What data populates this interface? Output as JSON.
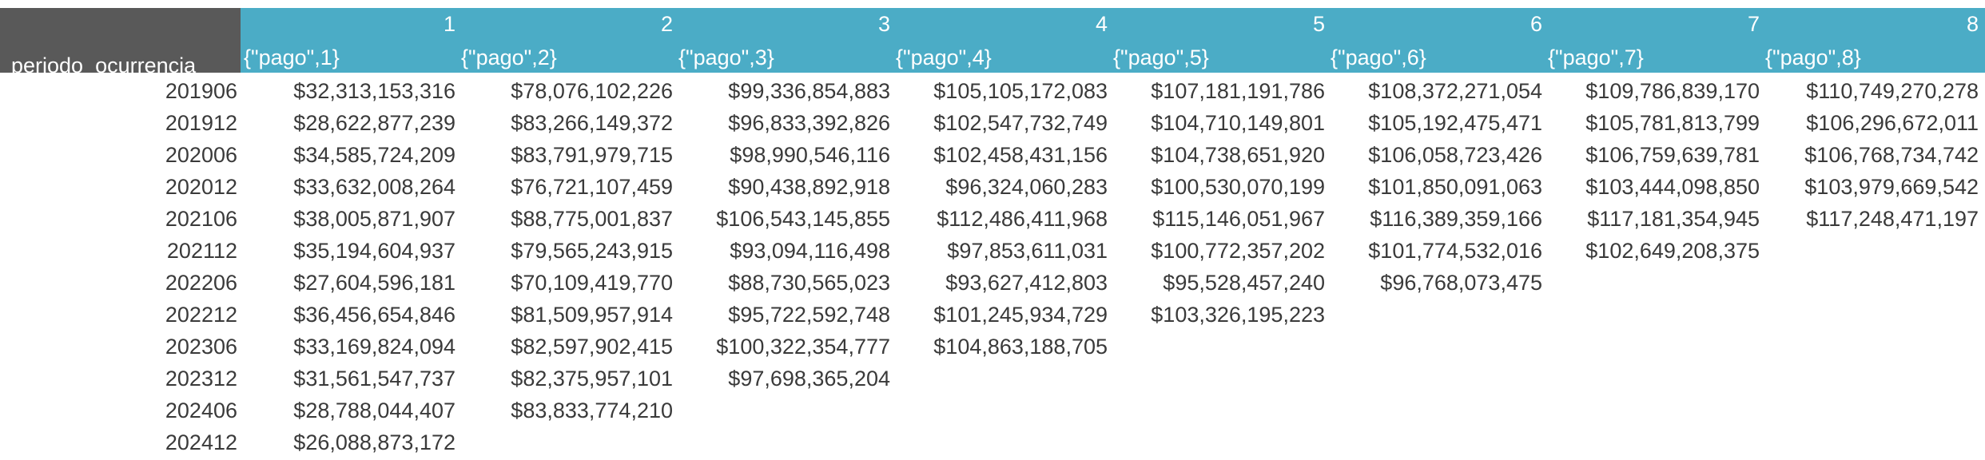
{
  "header": {
    "corner_label": "periodo_ocurrencia",
    "columns": [
      {
        "num": "1",
        "label": "{\"pago\",1}"
      },
      {
        "num": "2",
        "label": "{\"pago\",2}"
      },
      {
        "num": "3",
        "label": "{\"pago\",3}"
      },
      {
        "num": "4",
        "label": "{\"pago\",4}"
      },
      {
        "num": "5",
        "label": "{\"pago\",5}"
      },
      {
        "num": "6",
        "label": "{\"pago\",6}"
      },
      {
        "num": "7",
        "label": "{\"pago\",7}"
      },
      {
        "num": "8",
        "label": "{\"pago\",8}"
      }
    ]
  },
  "rows": [
    {
      "period": "201906",
      "values": [
        "$32,313,153,316",
        "$78,076,102,226",
        "$99,336,854,883",
        "$105,105,172,083",
        "$107,181,191,786",
        "$108,372,271,054",
        "$109,786,839,170",
        "$110,749,270,278"
      ]
    },
    {
      "period": "201912",
      "values": [
        "$28,622,877,239",
        "$83,266,149,372",
        "$96,833,392,826",
        "$102,547,732,749",
        "$104,710,149,801",
        "$105,192,475,471",
        "$105,781,813,799",
        "$106,296,672,011"
      ]
    },
    {
      "period": "202006",
      "values": [
        "$34,585,724,209",
        "$83,791,979,715",
        "$98,990,546,116",
        "$102,458,431,156",
        "$104,738,651,920",
        "$106,058,723,426",
        "$106,759,639,781",
        "$106,768,734,742"
      ]
    },
    {
      "period": "202012",
      "values": [
        "$33,632,008,264",
        "$76,721,107,459",
        "$90,438,892,918",
        "$96,324,060,283",
        "$100,530,070,199",
        "$101,850,091,063",
        "$103,444,098,850",
        "$103,979,669,542"
      ]
    },
    {
      "period": "202106",
      "values": [
        "$38,005,871,907",
        "$88,775,001,837",
        "$106,543,145,855",
        "$112,486,411,968",
        "$115,146,051,967",
        "$116,389,359,166",
        "$117,181,354,945",
        "$117,248,471,197"
      ]
    },
    {
      "period": "202112",
      "values": [
        "$35,194,604,937",
        "$79,565,243,915",
        "$93,094,116,498",
        "$97,853,611,031",
        "$100,772,357,202",
        "$101,774,532,016",
        "$102,649,208,375",
        ""
      ]
    },
    {
      "period": "202206",
      "values": [
        "$27,604,596,181",
        "$70,109,419,770",
        "$88,730,565,023",
        "$93,627,412,803",
        "$95,528,457,240",
        "$96,768,073,475",
        "",
        ""
      ]
    },
    {
      "period": "202212",
      "values": [
        "$36,456,654,846",
        "$81,509,957,914",
        "$95,722,592,748",
        "$101,245,934,729",
        "$103,326,195,223",
        "",
        "",
        ""
      ]
    },
    {
      "period": "202306",
      "values": [
        "$33,169,824,094",
        "$82,597,902,415",
        "$100,322,354,777",
        "$104,863,188,705",
        "",
        "",
        "",
        ""
      ]
    },
    {
      "period": "202312",
      "values": [
        "$31,561,547,737",
        "$82,375,957,101",
        "$97,698,365,204",
        "",
        "",
        "",
        "",
        ""
      ]
    },
    {
      "period": "202406",
      "values": [
        "$28,788,044,407",
        "$83,833,774,210",
        "",
        "",
        "",
        "",
        "",
        ""
      ]
    },
    {
      "period": "202412",
      "values": [
        "$26,088,873,172",
        "",
        "",
        "",
        "",
        "",
        "",
        ""
      ]
    }
  ]
}
